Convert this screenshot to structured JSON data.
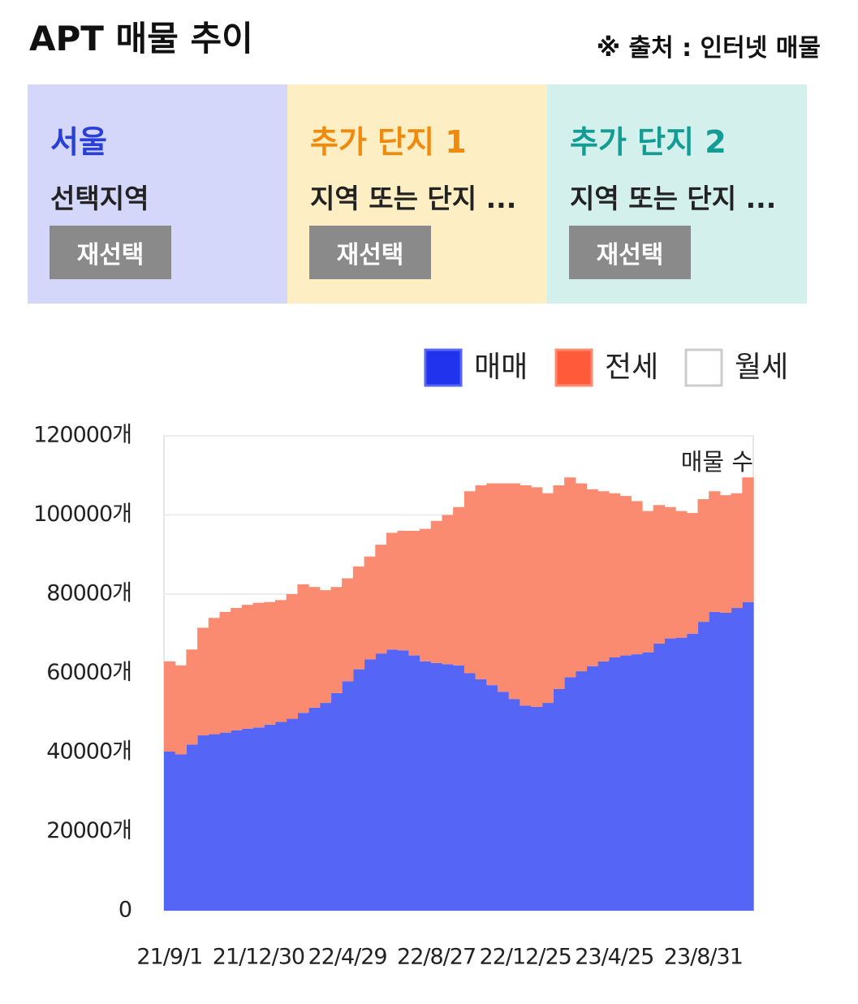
{
  "header": {
    "title": "APT 매물 추이",
    "source": "※ 출처 : 인터넷 매물"
  },
  "panels": [
    {
      "name": "서울",
      "subtitle": "선택지역",
      "button": "재선택"
    },
    {
      "name": "추가 단지 1",
      "subtitle": "지역 또는 단지 ...",
      "button": "재선택"
    },
    {
      "name": "추가 단지 2",
      "subtitle": "지역 또는 단지 ...",
      "button": "재선택"
    }
  ],
  "chart_data": {
    "type": "stacked_area",
    "annotation": "매물 수",
    "categories": [
      "21/9/1",
      null,
      null,
      null,
      null,
      null,
      null,
      null,
      "21/12/30",
      null,
      null,
      null,
      null,
      null,
      null,
      null,
      "22/4/29",
      null,
      null,
      null,
      null,
      null,
      null,
      null,
      "22/8/27",
      null,
      null,
      null,
      null,
      null,
      null,
      null,
      "22/12/25",
      null,
      null,
      null,
      null,
      null,
      null,
      null,
      "23/4/25",
      null,
      null,
      null,
      null,
      null,
      null,
      null,
      "23/8/31",
      null,
      null,
      null,
      null
    ],
    "series": [
      {
        "name": "매매",
        "color": "#5565f6",
        "legend_color": "#2233ee",
        "values": [
          40200,
          39500,
          42000,
          44300,
          44600,
          45000,
          45600,
          46000,
          46300,
          47000,
          47700,
          48500,
          50000,
          51300,
          52500,
          55000,
          58000,
          61000,
          63500,
          65000,
          66000,
          65800,
          64500,
          63000,
          62600,
          62300,
          62000,
          60000,
          58500,
          57000,
          55300,
          53500,
          51800,
          51500,
          52500,
          56000,
          59000,
          60500,
          61800,
          63000,
          64000,
          64500,
          64800,
          65300,
          67500,
          68800,
          69000,
          70000,
          73000,
          75500,
          75300,
          76500,
          78000
        ]
      },
      {
        "name": "전세",
        "color": "#fa8b71",
        "legend_color": "#ff5b3b",
        "values": [
          22800,
          22500,
          24000,
          27200,
          29400,
          30500,
          30900,
          31300,
          31500,
          31000,
          30800,
          31500,
          32500,
          30500,
          28500,
          26800,
          26000,
          26000,
          26000,
          27500,
          29500,
          30200,
          31500,
          33500,
          35900,
          37700,
          40000,
          46000,
          49000,
          51000,
          52700,
          54500,
          55700,
          55500,
          53000,
          51500,
          50500,
          47500,
          44700,
          43000,
          41500,
          40300,
          38700,
          35700,
          35000,
          33200,
          32000,
          30500,
          31000,
          30500,
          29700,
          29000,
          31500
        ]
      },
      {
        "name": "월세",
        "color": "#ffffff",
        "legend_color": "#ffffff",
        "values": [
          0,
          0,
          0,
          0,
          0,
          0,
          0,
          0,
          0,
          0,
          0,
          0,
          0,
          0,
          0,
          0,
          0,
          0,
          0,
          0,
          0,
          0,
          0,
          0,
          0,
          0,
          0,
          0,
          0,
          0,
          0,
          0,
          0,
          0,
          0,
          0,
          0,
          0,
          0,
          0,
          0,
          0,
          0,
          0,
          0,
          0,
          0,
          0,
          0,
          0,
          0,
          0,
          0
        ]
      }
    ],
    "ylim": [
      0,
      120000
    ],
    "yticks": [
      0,
      {
        "value": 20000,
        "label": "20000개"
      },
      {
        "value": 40000,
        "label": "40000개"
      },
      {
        "value": 60000,
        "label": "60000개"
      },
      {
        "value": 80000,
        "label": "80000개"
      },
      {
        "value": 100000,
        "label": "100000개"
      },
      {
        "value": 120000,
        "label": "120000개"
      }
    ],
    "grid": true,
    "legend_position": "top-right"
  }
}
